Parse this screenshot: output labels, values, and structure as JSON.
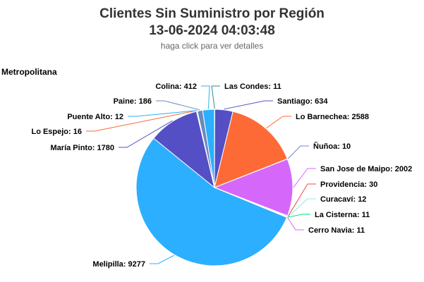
{
  "header": {
    "title_line1": "Clientes Sin Suministro por Región",
    "title_line2": "13-06-2024 04:03:48",
    "subtitle": "haga click para ver detalles"
  },
  "region_label": "Metropolitana",
  "chart_data": {
    "type": "pie",
    "title": "Clientes Sin Suministro por Región 13-06-2024 04:03:48",
    "subtitle": "haga click para ver detalles",
    "series_name": "Metropolitana",
    "slices": [
      {
        "name": "Las Condes",
        "value": 11,
        "color": "#2b908f"
      },
      {
        "name": "Santiago",
        "value": 634,
        "color": "#544fc5"
      },
      {
        "name": "Lo Barnechea",
        "value": 2588,
        "color": "#fe6a35"
      },
      {
        "name": "Ñuñoa",
        "value": 10,
        "color": "#6b8abc"
      },
      {
        "name": "San Jose de Maipo",
        "value": 2002,
        "color": "#d568fb"
      },
      {
        "name": "Providencia",
        "value": 30,
        "color": "#f04b51"
      },
      {
        "name": "Curacaví",
        "value": 12,
        "color": "#91e8e1"
      },
      {
        "name": "La Cisterna",
        "value": 11,
        "color": "#00e272"
      },
      {
        "name": "Cerro Navia",
        "value": 11,
        "color": "#d568fb"
      },
      {
        "name": "Melipilla",
        "value": 9277,
        "color": "#2caffe"
      },
      {
        "name": "María Pinto",
        "value": 1780,
        "color": "#544fc5"
      },
      {
        "name": "Lo Espejo",
        "value": 16,
        "color": "#fe6a35"
      },
      {
        "name": "Puente Alto",
        "value": 12,
        "color": "#2caffe"
      },
      {
        "name": "Paine",
        "value": 186,
        "color": "#6b8abc"
      },
      {
        "name": "Colina",
        "value": 412,
        "color": "#2caffe"
      }
    ]
  }
}
